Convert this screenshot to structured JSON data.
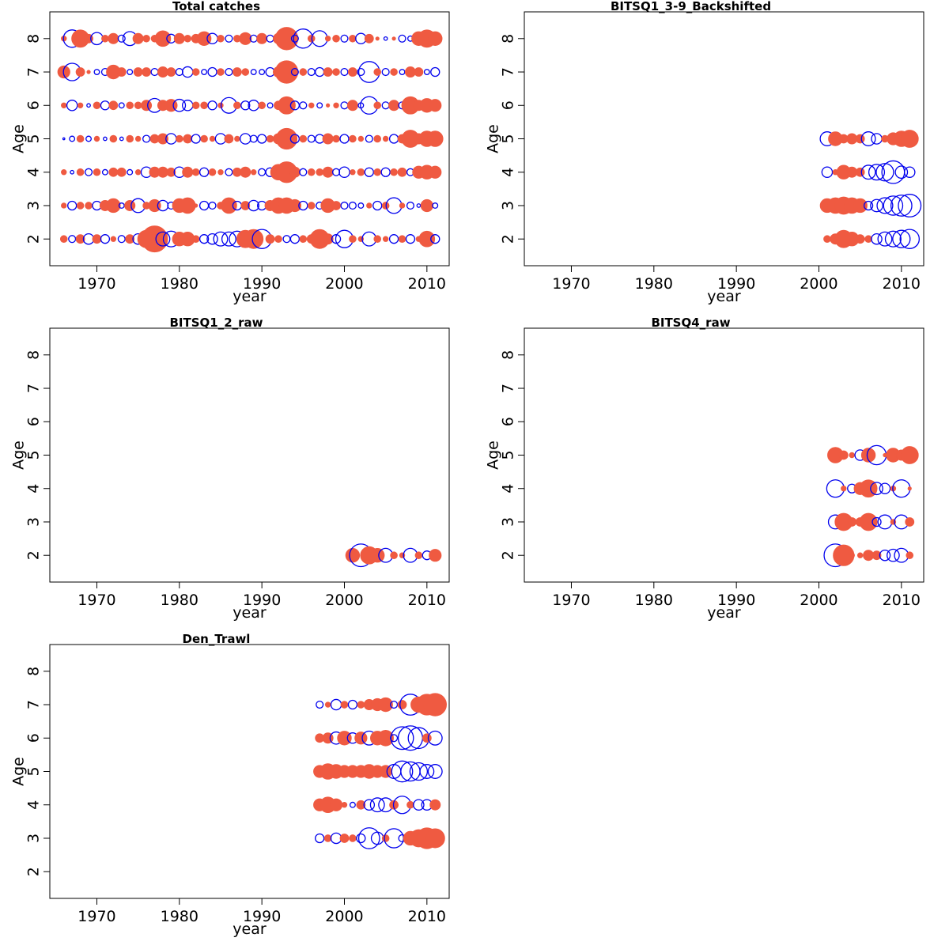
{
  "colors": {
    "positive": "#ef5a41",
    "negative": "#0000ee",
    "axis": "#000000",
    "background": "#ffffff"
  },
  "chart_data": [
    {
      "type": "scatter",
      "title": "Total catches",
      "xlabel": "year",
      "ylabel": "Age",
      "xlim": [
        1964.3,
        2012.7
      ],
      "ylim": [
        1.2,
        8.8
      ],
      "xticks": [
        1970,
        1980,
        1990,
        2000,
        2010
      ],
      "yticks": [
        2,
        3,
        4,
        5,
        6,
        7,
        8
      ],
      "ages": [
        2,
        3,
        4,
        5,
        6,
        7,
        8
      ],
      "years": [
        1966,
        1967,
        1968,
        1969,
        1970,
        1971,
        1972,
        1973,
        1974,
        1975,
        1976,
        1977,
        1978,
        1979,
        1980,
        1981,
        1982,
        1983,
        1984,
        1985,
        1986,
        1987,
        1988,
        1989,
        1990,
        1991,
        1992,
        1993,
        1994,
        1995,
        1996,
        1997,
        1998,
        1999,
        2000,
        2001,
        2002,
        2003,
        2004,
        2005,
        2006,
        2007,
        2008,
        2009,
        2010,
        2011
      ],
      "residuals": {
        "2": [
          0.4,
          -0.4,
          0.5,
          -0.6,
          0.5,
          -0.5,
          0.3,
          -0.4,
          0.5,
          -0.6,
          1.0,
          1.5,
          -0.8,
          -0.9,
          0.8,
          0.8,
          0.4,
          -0.5,
          -0.6,
          -0.8,
          -0.8,
          -0.9,
          1.0,
          1.1,
          -1.1,
          0.5,
          0.4,
          -0.4,
          -0.5,
          0.4,
          0.5,
          1.1,
          0.6,
          -0.5,
          -1.0,
          0.4,
          0.3,
          -0.8,
          0.4,
          0.3,
          -0.5,
          0.4,
          -0.5,
          0.3,
          0.9,
          -0.5
        ],
        "3": [
          0.3,
          -0.5,
          0.4,
          0.4,
          -0.5,
          0.6,
          0.8,
          -0.3,
          0.6,
          -0.8,
          0.4,
          0.7,
          -0.6,
          -0.4,
          0.8,
          0.9,
          0.2,
          -0.5,
          -0.4,
          0.4,
          0.9,
          -0.5,
          0.5,
          -0.6,
          -0.5,
          0.6,
          0.9,
          0.9,
          0.7,
          -0.5,
          0.4,
          -0.4,
          0.8,
          0.5,
          -0.4,
          -0.4,
          -0.3,
          0.3,
          -0.5,
          0.4,
          -0.9,
          0.3,
          -0.4,
          -0.2,
          0.7,
          -0.3
        ],
        "4": [
          0.3,
          -0.2,
          0.4,
          -0.4,
          0.4,
          -0.3,
          0.5,
          0.5,
          -0.3,
          0.3,
          -0.6,
          0.6,
          0.6,
          0.5,
          -0.6,
          0.6,
          0.4,
          -0.5,
          0.4,
          0.3,
          -0.4,
          0.5,
          0.6,
          0.3,
          -0.4,
          -0.5,
          0.9,
          1.2,
          0.6,
          -0.4,
          0.4,
          0.4,
          0.6,
          -0.4,
          -0.6,
          0.3,
          0.4,
          -0.5,
          0.4,
          -0.5,
          0.4,
          0.5,
          -0.4,
          0.7,
          0.8,
          0.7
        ],
        "5": [
          -0.1,
          -0.3,
          0.4,
          -0.3,
          0.3,
          -0.2,
          0.4,
          -0.2,
          0.4,
          0.3,
          -0.4,
          0.5,
          0.6,
          -0.6,
          0.4,
          0.5,
          -0.5,
          0.4,
          0.3,
          -0.6,
          0.5,
          0.3,
          -0.6,
          -0.4,
          -0.5,
          0.4,
          0.6,
          1.2,
          -0.5,
          0.4,
          -0.4,
          -0.5,
          0.6,
          0.4,
          -0.5,
          0.4,
          0.3,
          -0.4,
          0.4,
          0.3,
          -0.5,
          0.5,
          1.0,
          0.6,
          0.9,
          0.9
        ],
        "6": [
          0.3,
          -0.6,
          0.3,
          -0.2,
          0.4,
          -0.5,
          0.5,
          -0.3,
          0.4,
          0.4,
          0.6,
          -0.8,
          0.6,
          0.7,
          -0.7,
          -0.6,
          0.4,
          0.4,
          -0.5,
          0.3,
          -0.9,
          0.4,
          -0.5,
          -0.6,
          0.4,
          -0.3,
          0.5,
          1.0,
          -0.5,
          -0.4,
          0.3,
          -0.3,
          0.2,
          0.3,
          -0.4,
          0.6,
          -0.3,
          -1.0,
          0.4,
          -0.4,
          0.6,
          -0.4,
          1.0,
          0.6,
          0.8,
          0.7
        ],
        "7": [
          0.7,
          -1.0,
          0.5,
          0.2,
          -0.3,
          -0.4,
          0.8,
          0.5,
          -0.3,
          0.5,
          0.5,
          -0.4,
          0.6,
          0.5,
          -0.4,
          -0.6,
          0.4,
          -0.3,
          -0.5,
          0.4,
          -0.4,
          0.5,
          0.4,
          -0.3,
          -0.3,
          -0.5,
          0.6,
          1.3,
          -0.4,
          0.4,
          -0.4,
          -0.5,
          0.5,
          0.4,
          -0.4,
          0.5,
          -0.4,
          -1.2,
          0.4,
          -0.4,
          0.4,
          -0.3,
          0.6,
          0.5,
          -0.3,
          -0.5
        ],
        "8": [
          0.3,
          -1.0,
          1.0,
          0.5,
          -0.7,
          0.4,
          0.6,
          -0.4,
          -0.8,
          0.6,
          0.4,
          0.4,
          0.9,
          -0.5,
          0.6,
          0.4,
          0.5,
          0.8,
          -0.6,
          0.4,
          -0.4,
          0.4,
          0.7,
          -0.4,
          0.6,
          -0.4,
          0.6,
          1.3,
          -0.4,
          -1.1,
          0.4,
          -0.9,
          0.3,
          0.4,
          -0.4,
          0.4,
          -0.6,
          0.5,
          0.2,
          -0.2,
          0.2,
          -0.4,
          -0.3,
          0.8,
          1.0,
          0.8
        ]
      }
    },
    {
      "type": "scatter",
      "title": "BITSQ1_3-9_Backshifted",
      "xlabel": "year",
      "ylabel": "Age",
      "xlim": [
        1964.3,
        2012.7
      ],
      "ylim": [
        1.2,
        8.8
      ],
      "xticks": [
        1970,
        1980,
        1990,
        2000,
        2010
      ],
      "yticks": [
        2,
        3,
        4,
        5,
        6,
        7,
        8
      ],
      "ages": [
        2,
        3,
        4,
        5
      ],
      "years": [
        2001,
        2002,
        2003,
        2004,
        2005,
        2006,
        2007,
        2008,
        2009,
        2010,
        2011
      ],
      "residuals": {
        "2": [
          0.4,
          0.6,
          1.0,
          0.8,
          0.5,
          0.4,
          -0.6,
          -0.8,
          -0.9,
          -1.0,
          -1.1
        ],
        "3": [
          0.8,
          0.9,
          1.0,
          0.9,
          0.8,
          -0.5,
          -0.7,
          -0.9,
          -1.1,
          -1.2,
          -1.3
        ],
        "4": [
          -0.6,
          0.3,
          0.8,
          0.6,
          0.5,
          -0.8,
          -0.9,
          -1.0,
          -1.3,
          -0.7,
          -0.6
        ],
        "5": [
          -0.8,
          0.8,
          0.5,
          0.6,
          0.5,
          -0.8,
          -0.6,
          0.4,
          0.7,
          0.9,
          1.0
        ]
      }
    },
    {
      "type": "scatter",
      "title": "BITSQ1_2_raw",
      "xlabel": "year",
      "ylabel": "Age",
      "xlim": [
        1964.3,
        2012.7
      ],
      "ylim": [
        1.2,
        8.8
      ],
      "xticks": [
        1970,
        1980,
        1990,
        2000,
        2010
      ],
      "yticks": [
        2,
        3,
        4,
        5,
        6,
        7,
        8
      ],
      "ages": [
        2
      ],
      "years": [
        2001,
        2002,
        2003,
        2004,
        2005,
        2006,
        2007,
        2008,
        2009,
        2010,
        2011
      ],
      "residuals": {
        "2": [
          0.8,
          -1.3,
          1.0,
          0.8,
          -0.8,
          0.4,
          0.3,
          -0.8,
          0.4,
          -0.5,
          0.7
        ]
      }
    },
    {
      "type": "scatter",
      "title": "BITSQ4_raw",
      "xlabel": "year",
      "ylabel": "Age",
      "xlim": [
        1964.3,
        2012.7
      ],
      "ylim": [
        1.2,
        8.8
      ],
      "xticks": [
        1970,
        1980,
        1990,
        2000,
        2010
      ],
      "yticks": [
        2,
        3,
        4,
        5,
        6,
        7,
        8
      ],
      "ages": [
        2,
        3,
        4,
        5
      ],
      "years": [
        2002,
        2003,
        2004,
        2005,
        2006,
        2007,
        2008,
        2009,
        2010,
        2011
      ],
      "residuals": {
        "2": [
          -1.3,
          1.2,
          0.3,
          0.3,
          0.6,
          0.5,
          -0.6,
          -0.7,
          -0.8,
          0.4
        ],
        "3": [
          -0.8,
          1.0,
          0.5,
          0.5,
          1.0,
          -0.5,
          -0.8,
          0.3,
          -0.8,
          0.5
        ],
        "4": [
          -1.0,
          0.3,
          -0.5,
          0.7,
          1.0,
          -0.7,
          -0.6,
          0.3,
          -1.0,
          0.2
        ],
        "5": [
          0.9,
          0.5,
          0.3,
          -0.6,
          0.8,
          -1.1,
          0.2,
          0.8,
          0.6,
          1.0
        ]
      }
    },
    {
      "type": "scatter",
      "title": "Den_Trawl",
      "xlabel": "year",
      "ylabel": "Age",
      "xlim": [
        1964.3,
        2012.7
      ],
      "ylim": [
        1.2,
        8.8
      ],
      "xticks": [
        1970,
        1980,
        1990,
        2000,
        2010
      ],
      "yticks": [
        2,
        3,
        4,
        5,
        6,
        7,
        8
      ],
      "ages": [
        3,
        4,
        5,
        6,
        7
      ],
      "years": [
        1997,
        1998,
        1999,
        2000,
        2001,
        2002,
        2003,
        2004,
        2005,
        2006,
        2007,
        2008,
        2009,
        2010,
        2011
      ],
      "residuals": {
        "3": [
          -0.5,
          0.4,
          -0.6,
          0.5,
          0.4,
          -0.5,
          -1.2,
          -0.7,
          0.4,
          -1.1,
          -0.4,
          0.8,
          1.0,
          1.2,
          1.1
        ],
        "4": [
          0.7,
          0.9,
          0.7,
          0.3,
          -0.3,
          0.5,
          -0.6,
          -0.8,
          -0.8,
          0.5,
          -1.0,
          0.4,
          -0.6,
          -0.6,
          0.6
        ],
        "5": [
          0.7,
          0.9,
          0.8,
          0.7,
          0.7,
          0.7,
          0.8,
          0.7,
          0.7,
          -0.8,
          -1.2,
          -1.1,
          -1.0,
          -0.8,
          -0.8
        ],
        "6": [
          0.5,
          0.6,
          -0.7,
          0.8,
          -0.6,
          0.7,
          -0.8,
          0.8,
          0.9,
          -0.4,
          -1.3,
          -1.4,
          -1.2,
          0.5,
          -0.8
        ],
        "7": [
          -0.4,
          0.3,
          -0.6,
          0.4,
          -0.5,
          0.4,
          0.6,
          0.7,
          0.8,
          -0.4,
          0.5,
          -1.2,
          0.9,
          1.2,
          1.3
        ]
      }
    }
  ]
}
